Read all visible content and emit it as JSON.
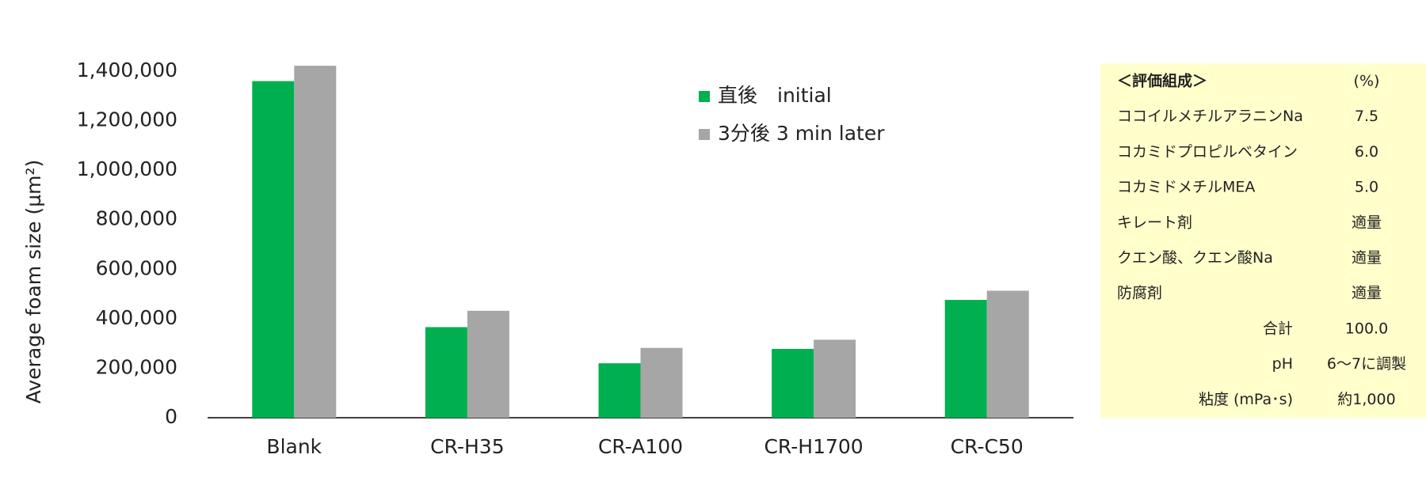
{
  "chart_data": {
    "type": "bar",
    "y_label": "Average foam size (µm²)",
    "categories": [
      "Blank",
      "CR-H35",
      "CR-A100",
      "CR-H1700",
      "CR-C50"
    ],
    "series": [
      {
        "name": "直後　initial",
        "color": "#00b050",
        "values": [
          1360000,
          366000,
          220000,
          278000,
          476000
        ]
      },
      {
        "name": "3分後  3 min later",
        "color": "#a6a6a6",
        "values": [
          1422000,
          432000,
          282000,
          315000,
          513000
        ]
      }
    ],
    "ylim": [
      0,
      1400000
    ],
    "yticks": [
      0,
      {
        "value": 200000,
        "label": "200,000"
      },
      {
        "value": 400000,
        "label": "400,000"
      },
      {
        "value": 600000,
        "label": "600,000"
      },
      {
        "value": 800000,
        "label": "800,000"
      },
      {
        "value": 1000000,
        "label": "1,000,000"
      },
      {
        "value": 1200000,
        "label": "1,200,000"
      },
      {
        "value": 1400000,
        "label": "1,400,000"
      }
    ],
    "grid": false
  },
  "table": {
    "rows": [
      [
        "＜評価組成＞",
        "(%)"
      ],
      [
        "ココイルメチルアラニンNa",
        "7.5"
      ],
      [
        "コカミドプロピルベタイン",
        "6.0"
      ],
      [
        "コカミドメチルMEA",
        "5.0"
      ],
      [
        "キレート剤",
        "適量"
      ],
      [
        "クエン酸、クエン酸Na",
        "適量"
      ],
      [
        "防腐剤",
        "適量"
      ],
      [
        "合計",
        "100.0"
      ],
      [
        "pH",
        "6～7に調製"
      ],
      [
        "粘度 (mPa･s)",
        "約1,000"
      ]
    ]
  }
}
